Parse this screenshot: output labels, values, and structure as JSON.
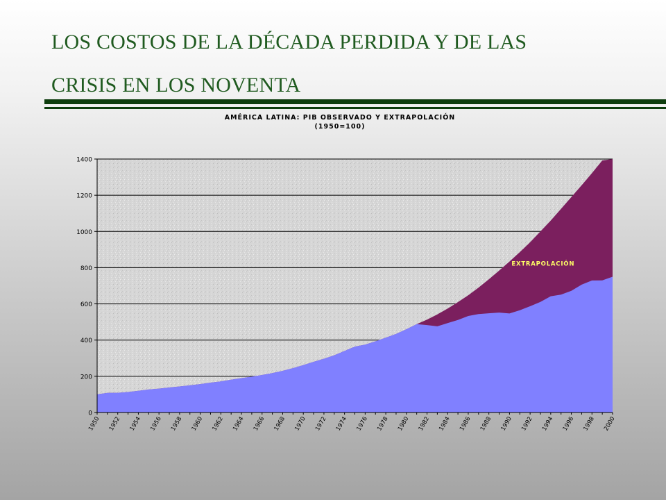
{
  "slide": {
    "title_line1": "LOS COSTOS DE LA DÉCADA PERDIDA Y DE LAS",
    "title_line2": "CRISIS EN LOS NOVENTA",
    "title_color": "#1f5a1f",
    "rule_color": "#0e3d0e"
  },
  "chart_data": {
    "type": "area",
    "title": "AMÉRICA LATINA: PIB OBSERVADO Y EXTRAPOLACIÓN",
    "subtitle": "(1950=100)",
    "xlabel": "",
    "ylabel": "",
    "ylim": [
      0,
      1400
    ],
    "yticks": [
      0,
      200,
      400,
      600,
      800,
      1000,
      1200,
      1400
    ],
    "grid": true,
    "x_tick_labels": [
      "1950",
      "1952",
      "1954",
      "1956",
      "1958",
      "1960",
      "1962",
      "1964",
      "1966",
      "1968",
      "1970",
      "1972",
      "1974",
      "1976",
      "1978",
      "1980",
      "1982",
      "1984",
      "1986",
      "1988",
      "1990",
      "1992",
      "1994",
      "1996",
      "1998",
      "2000"
    ],
    "annotation": "EXTRAPOLACIÓN",
    "colors": {
      "observed": "#8080ff",
      "extrapolation": "#7b1f5e",
      "plot_background": "#d6d6d6",
      "annotation_text": "#ffff66"
    },
    "x": [
      1950,
      1951,
      1952,
      1953,
      1954,
      1955,
      1956,
      1957,
      1958,
      1959,
      1960,
      1961,
      1962,
      1963,
      1964,
      1965,
      1966,
      1967,
      1968,
      1969,
      1970,
      1971,
      1972,
      1973,
      1974,
      1975,
      1976,
      1977,
      1978,
      1979,
      1980,
      1981,
      1982,
      1983,
      1984,
      1985,
      1986,
      1987,
      1988,
      1989,
      1990,
      1991,
      1992,
      1993,
      1994,
      1995,
      1996,
      1997,
      1998,
      1999,
      2000
    ],
    "series": [
      {
        "values": [
          100,
          108,
          109,
          113,
          120,
          127,
          132,
          138,
          144,
          150,
          157,
          165,
          172,
          181,
          190,
          198,
          207,
          218,
          230,
          245,
          262,
          280,
          297,
          316,
          340,
          364,
          375,
          393,
          413,
          434,
          460,
          488,
          483,
          476,
          494,
          511,
          533,
          544,
          548,
          552,
          547,
          565,
          587,
          611,
          642,
          651,
          672,
          706,
          729,
          730,
          750
        ]
      },
      {
        "values": [
          100,
          108,
          109,
          113,
          120,
          127,
          132,
          138,
          144,
          150,
          157,
          165,
          172,
          181,
          190,
          198,
          207,
          218,
          230,
          245,
          262,
          280,
          297,
          316,
          340,
          364,
          375,
          393,
          413,
          434,
          460,
          488,
          513,
          542,
          574,
          610,
          648,
          690,
          736,
          784,
          834,
          886,
          940,
          1000,
          1060,
          1125,
          1190,
          1255,
          1322,
          1392,
          1400
        ]
      }
    ]
  }
}
